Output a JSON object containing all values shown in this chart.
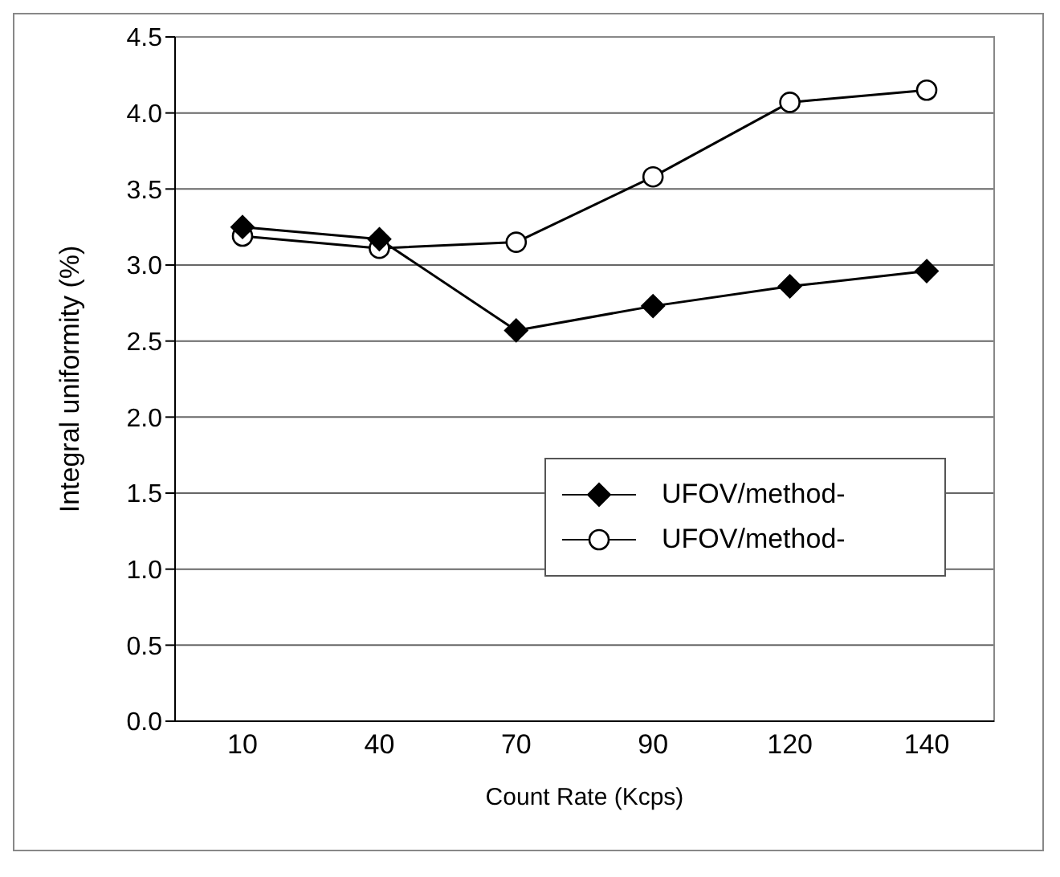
{
  "chart_data": {
    "type": "line",
    "xlabel": "Count Rate (Kcps)",
    "ylabel": "Integral uniformity (%)",
    "categories": [
      "10",
      "40",
      "70",
      "90",
      "120",
      "140"
    ],
    "series": [
      {
        "name": "UFOV/method-",
        "color": "#000000",
        "marker": "diamond",
        "values": [
          3.25,
          3.17,
          2.57,
          2.73,
          2.86,
          2.96
        ]
      },
      {
        "name": "UFOV/method-",
        "color": "#000000",
        "marker": "circle",
        "values": [
          3.19,
          3.11,
          3.15,
          3.58,
          4.07,
          4.15
        ]
      }
    ],
    "ylim": [
      0,
      4.5
    ],
    "yticks": [
      {
        "value": 0,
        "label": "0.0"
      },
      {
        "value": 0.5,
        "label": "0.5"
      },
      {
        "value": 1,
        "label": "1.0"
      },
      {
        "value": 1.5,
        "label": "1.5"
      },
      {
        "value": 2,
        "label": "2.0"
      },
      {
        "value": 2.5,
        "label": "2.5"
      },
      {
        "value": 3,
        "label": "3.0"
      },
      {
        "value": 3.5,
        "label": "3.5"
      },
      {
        "value": 4,
        "label": "4.0"
      },
      {
        "value": 4.5,
        "label": "4.5"
      }
    ],
    "grid": "y",
    "legend": "right",
    "line_style": "solid"
  }
}
